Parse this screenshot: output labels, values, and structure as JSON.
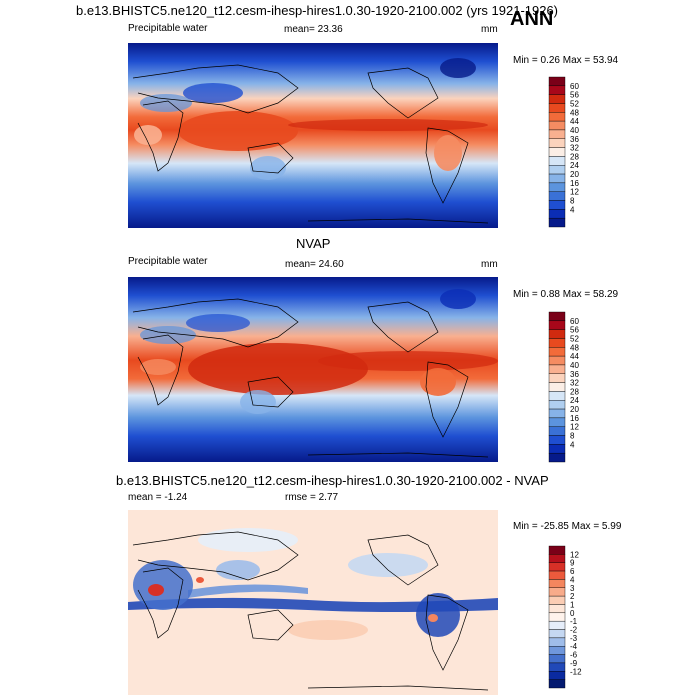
{
  "figure": {
    "main_title": "b.e13.BHISTC5.ne120_t12.cesm-ihesp-hires1.0.30-1920-2100.002 (yrs 1921-1926)",
    "season": "ANN"
  },
  "panels": [
    {
      "variable_label": "Precipitable water",
      "mean_text": "mean=  23.36",
      "units": "mm",
      "minmax_text": "Min =   0.26 Max =  53.94",
      "colorbar_ticks": [
        "60",
        "56",
        "52",
        "48",
        "44",
        "40",
        "36",
        "32",
        "28",
        "24",
        "20",
        "16",
        "12",
        "8",
        "4"
      ],
      "colors": [
        "#7a0018",
        "#a8071a",
        "#d12a0f",
        "#e84a1f",
        "#f26b3a",
        "#f58c62",
        "#f9b090",
        "#fbd3bd",
        "#fbeee6",
        "#d6e6f7",
        "#b0cff0",
        "#87b3e8",
        "#5c94de",
        "#3a71d6",
        "#1f4fd1",
        "#0b2db5",
        "#061a8a"
      ]
    },
    {
      "center_title": "NVAP",
      "variable_label": "Precipitable water",
      "mean_text": "mean=  24.60",
      "units": "mm",
      "minmax_text": "Min =   0.88 Max =  58.29",
      "colorbar_ticks": [
        "60",
        "56",
        "52",
        "48",
        "44",
        "40",
        "36",
        "32",
        "28",
        "24",
        "20",
        "16",
        "12",
        "8",
        "4"
      ],
      "colors": [
        "#7a0018",
        "#a8071a",
        "#d12a0f",
        "#e84a1f",
        "#f26b3a",
        "#f58c62",
        "#f9b090",
        "#fbd3bd",
        "#fbeee6",
        "#d6e6f7",
        "#b0cff0",
        "#87b3e8",
        "#5c94de",
        "#3a71d6",
        "#1f4fd1",
        "#0b2db5",
        "#061a8a"
      ]
    },
    {
      "center_title": "b.e13.BHISTC5.ne120_t12.cesm-ihesp-hires1.0.30-1920-2100.002 - NVAP",
      "mean_text": "mean =  -1.24",
      "rmse_text": "rmse =   2.77",
      "minmax_text": "Min = -25.85 Max =   5.99",
      "colorbar_ticks": [
        "12",
        "9",
        "6",
        "4",
        "3",
        "2",
        "1",
        "0",
        "-1",
        "-2",
        "-3",
        "-4",
        "-6",
        "-9",
        "-12"
      ],
      "colors": [
        "#7a0018",
        "#b5101c",
        "#d73027",
        "#ec5a3c",
        "#f4865e",
        "#f8ab8a",
        "#fbcdb4",
        "#fde6d8",
        "#fff3ec",
        "#e6eefa",
        "#c5d8f2",
        "#9fbdea",
        "#6f97dc",
        "#4470cc",
        "#2149b8",
        "#0a2aa0",
        "#041a70"
      ]
    }
  ]
}
